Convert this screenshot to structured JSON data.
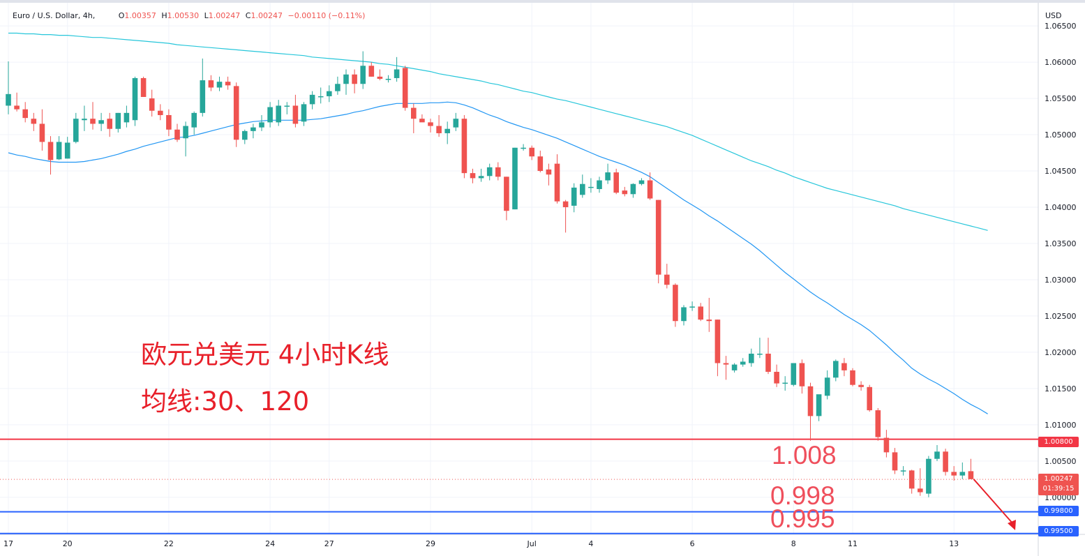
{
  "header": {
    "symbol": "Euro / U.S. Dollar, 4h,",
    "open_label": "O",
    "open": "1.00357",
    "high_label": "H",
    "high": "1.00530",
    "low_label": "L",
    "low": "1.00247",
    "close_label": "C",
    "close": "1.00247",
    "change": "−0.00110 (−0.11%)"
  },
  "axis": {
    "currency": "USD"
  },
  "annotations": {
    "title": "欧元兑美元 4小时K线",
    "ma_note": "均线:30、120",
    "level_1": "1.008",
    "level_2": "0.998",
    "level_3": "0.995"
  },
  "price_tags": {
    "resistance": "1.00800",
    "current_price": "1.00247",
    "countdown": "01:39:15",
    "support_1": "0.99800",
    "support_2": "0.99500"
  },
  "colors": {
    "up": "#26a69a",
    "down": "#ef5350",
    "ma30": "#2196f3",
    "ma120": "#26c6da",
    "resistance_line": "#f23645",
    "support_line": "#2962ff",
    "annotation_text": "#e8202a",
    "arrow": "#e8202a"
  },
  "chart_data": {
    "type": "candlestick",
    "timeframe": "4h",
    "symbol": "Euro / U.S. Dollar",
    "ylim": [
      0.9945,
      1.0678
    ],
    "y_ticks": [
      "1.06500",
      "1.06000",
      "1.05500",
      "1.05000",
      "1.04500",
      "1.04000",
      "1.03500",
      "1.03000",
      "1.02500",
      "1.02000",
      "1.01500",
      "1.01000",
      "1.00500",
      "1.00000"
    ],
    "x_ticks": [
      "17",
      "20",
      "22",
      "24",
      "27",
      "29",
      "Jul",
      "4",
      "6",
      "8",
      "11",
      "13"
    ],
    "x_tick_bar_index": [
      0,
      7,
      19,
      31,
      38,
      50,
      62,
      69,
      81,
      93,
      100,
      112
    ],
    "candles": [
      {
        "o": 1.054,
        "h": 1.0601,
        "l": 1.0528,
        "c": 1.0556
      },
      {
        "o": 1.054,
        "h": 1.0558,
        "l": 1.0532,
        "c": 1.0535
      },
      {
        "o": 1.0535,
        "h": 1.0545,
        "l": 1.0517,
        "c": 1.0523
      },
      {
        "o": 1.0522,
        "h": 1.053,
        "l": 1.0505,
        "c": 1.0515
      },
      {
        "o": 1.0515,
        "h": 1.0535,
        "l": 1.0478,
        "c": 1.049
      },
      {
        "o": 1.049,
        "h": 1.0498,
        "l": 1.0445,
        "c": 1.0465
      },
      {
        "o": 1.0466,
        "h": 1.0498,
        "l": 1.0465,
        "c": 1.049
      },
      {
        "o": 1.0467,
        "h": 1.0497,
        "l": 1.0467,
        "c": 1.0489
      },
      {
        "o": 1.049,
        "h": 1.053,
        "l": 1.0488,
        "c": 1.0522
      },
      {
        "o": 1.052,
        "h": 1.054,
        "l": 1.0505,
        "c": 1.0522
      },
      {
        "o": 1.0522,
        "h": 1.0545,
        "l": 1.0507,
        "c": 1.0515
      },
      {
        "o": 1.0515,
        "h": 1.053,
        "l": 1.0505,
        "c": 1.052
      },
      {
        "o": 1.0522,
        "h": 1.053,
        "l": 1.0497,
        "c": 1.0508
      },
      {
        "o": 1.0508,
        "h": 1.053,
        "l": 1.0503,
        "c": 1.053
      },
      {
        "o": 1.0517,
        "h": 1.054,
        "l": 1.051,
        "c": 1.053
      },
      {
        "o": 1.052,
        "h": 1.058,
        "l": 1.0512,
        "c": 1.0578
      },
      {
        "o": 1.0578,
        "h": 1.058,
        "l": 1.0552,
        "c": 1.0552
      },
      {
        "o": 1.055,
        "h": 1.0562,
        "l": 1.0525,
        "c": 1.0533
      },
      {
        "o": 1.0533,
        "h": 1.0542,
        "l": 1.052,
        "c": 1.0527
      },
      {
        "o": 1.0527,
        "h": 1.0535,
        "l": 1.0498,
        "c": 1.0507
      },
      {
        "o": 1.0507,
        "h": 1.0515,
        "l": 1.049,
        "c": 1.0493
      },
      {
        "o": 1.0495,
        "h": 1.0518,
        "l": 1.047,
        "c": 1.0512
      },
      {
        "o": 1.051,
        "h": 1.0532,
        "l": 1.05,
        "c": 1.053
      },
      {
        "o": 1.053,
        "h": 1.0605,
        "l": 1.0525,
        "c": 1.0575
      },
      {
        "o": 1.0575,
        "h": 1.0582,
        "l": 1.056,
        "c": 1.0565
      },
      {
        "o": 1.0565,
        "h": 1.058,
        "l": 1.056,
        "c": 1.0573
      },
      {
        "o": 1.0573,
        "h": 1.058,
        "l": 1.0562,
        "c": 1.0568
      },
      {
        "o": 1.0567,
        "h": 1.0572,
        "l": 1.0483,
        "c": 1.0493
      },
      {
        "o": 1.0493,
        "h": 1.0507,
        "l": 1.0487,
        "c": 1.0505
      },
      {
        "o": 1.0505,
        "h": 1.0515,
        "l": 1.0495,
        "c": 1.051
      },
      {
        "o": 1.051,
        "h": 1.0527,
        "l": 1.0505,
        "c": 1.0517
      },
      {
        "o": 1.0517,
        "h": 1.0545,
        "l": 1.051,
        "c": 1.0538
      },
      {
        "o": 1.0517,
        "h": 1.0548,
        "l": 1.0512,
        "c": 1.054
      },
      {
        "o": 1.054,
        "h": 1.0545,
        "l": 1.0528,
        "c": 1.054
      },
      {
        "o": 1.054,
        "h": 1.0555,
        "l": 1.051,
        "c": 1.0515
      },
      {
        "o": 1.0518,
        "h": 1.0545,
        "l": 1.0512,
        "c": 1.0542
      },
      {
        "o": 1.0542,
        "h": 1.056,
        "l": 1.0535,
        "c": 1.0555
      },
      {
        "o": 1.0553,
        "h": 1.0565,
        "l": 1.0543,
        "c": 1.0553
      },
      {
        "o": 1.0553,
        "h": 1.0568,
        "l": 1.0545,
        "c": 1.056
      },
      {
        "o": 1.056,
        "h": 1.058,
        "l": 1.0555,
        "c": 1.057
      },
      {
        "o": 1.057,
        "h": 1.059,
        "l": 1.0555,
        "c": 1.0583
      },
      {
        "o": 1.0583,
        "h": 1.059,
        "l": 1.0557,
        "c": 1.057
      },
      {
        "o": 1.057,
        "h": 1.0615,
        "l": 1.0563,
        "c": 1.0595
      },
      {
        "o": 1.0595,
        "h": 1.06,
        "l": 1.058,
        "c": 1.058
      },
      {
        "o": 1.058,
        "h": 1.059,
        "l": 1.0575,
        "c": 1.0577
      },
      {
        "o": 1.0577,
        "h": 1.0582,
        "l": 1.0572,
        "c": 1.0577
      },
      {
        "o": 1.0578,
        "h": 1.0607,
        "l": 1.0573,
        "c": 1.059
      },
      {
        "o": 1.0592,
        "h": 1.0595,
        "l": 1.0533,
        "c": 1.0537
      },
      {
        "o": 1.0537,
        "h": 1.0543,
        "l": 1.0502,
        "c": 1.0522
      },
      {
        "o": 1.0522,
        "h": 1.0528,
        "l": 1.0518,
        "c": 1.0517
      },
      {
        "o": 1.0517,
        "h": 1.0522,
        "l": 1.0503,
        "c": 1.0512
      },
      {
        "o": 1.0512,
        "h": 1.0527,
        "l": 1.0497,
        "c": 1.0502
      },
      {
        "o": 1.0502,
        "h": 1.0518,
        "l": 1.0487,
        "c": 1.0508
      },
      {
        "o": 1.051,
        "h": 1.053,
        "l": 1.0505,
        "c": 1.0522
      },
      {
        "o": 1.0522,
        "h": 1.0527,
        "l": 1.044,
        "c": 1.0447
      },
      {
        "o": 1.0447,
        "h": 1.0453,
        "l": 1.0433,
        "c": 1.044
      },
      {
        "o": 1.044,
        "h": 1.0453,
        "l": 1.0435,
        "c": 1.0443
      },
      {
        "o": 1.0443,
        "h": 1.046,
        "l": 1.0437,
        "c": 1.0455
      },
      {
        "o": 1.0455,
        "h": 1.0462,
        "l": 1.0437,
        "c": 1.0442
      },
      {
        "o": 1.0442,
        "h": 1.0442,
        "l": 1.0382,
        "c": 1.0395
      },
      {
        "o": 1.0397,
        "h": 1.0482,
        "l": 1.0397,
        "c": 1.0482
      },
      {
        "o": 1.0482,
        "h": 1.0487,
        "l": 1.0478,
        "c": 1.0482
      },
      {
        "o": 1.0482,
        "h": 1.0485,
        "l": 1.0465,
        "c": 1.047
      },
      {
        "o": 1.047,
        "h": 1.0478,
        "l": 1.0448,
        "c": 1.045
      },
      {
        "o": 1.0452,
        "h": 1.046,
        "l": 1.043,
        "c": 1.0445
      },
      {
        "o": 1.046,
        "h": 1.0473,
        "l": 1.0405,
        "c": 1.0408
      },
      {
        "o": 1.0408,
        "h": 1.041,
        "l": 1.0365,
        "c": 1.04
      },
      {
        "o": 1.0402,
        "h": 1.0433,
        "l": 1.0393,
        "c": 1.0427
      },
      {
        "o": 1.0417,
        "h": 1.0445,
        "l": 1.0413,
        "c": 1.0432
      },
      {
        "o": 1.0427,
        "h": 1.044,
        "l": 1.042,
        "c": 1.0428
      },
      {
        "o": 1.0425,
        "h": 1.0442,
        "l": 1.042,
        "c": 1.0437
      },
      {
        "o": 1.0437,
        "h": 1.046,
        "l": 1.0432,
        "c": 1.0448
      },
      {
        "o": 1.0448,
        "h": 1.0453,
        "l": 1.0418,
        "c": 1.042
      },
      {
        "o": 1.0423,
        "h": 1.0428,
        "l": 1.0415,
        "c": 1.0418
      },
      {
        "o": 1.0418,
        "h": 1.0433,
        "l": 1.0413,
        "c": 1.0432
      },
      {
        "o": 1.0432,
        "h": 1.044,
        "l": 1.043,
        "c": 1.0437
      },
      {
        "o": 1.0437,
        "h": 1.0448,
        "l": 1.041,
        "c": 1.0412
      },
      {
        "o": 1.041,
        "h": 1.041,
        "l": 1.0295,
        "c": 1.0307
      },
      {
        "o": 1.0307,
        "h": 1.0322,
        "l": 1.0288,
        "c": 1.0293
      },
      {
        "o": 1.0293,
        "h": 1.0295,
        "l": 1.0235,
        "c": 1.0243
      },
      {
        "o": 1.0243,
        "h": 1.0265,
        "l": 1.0237,
        "c": 1.0262
      },
      {
        "o": 1.0262,
        "h": 1.027,
        "l": 1.0257,
        "c": 1.0263
      },
      {
        "o": 1.0263,
        "h": 1.0268,
        "l": 1.0243,
        "c": 1.0245
      },
      {
        "o": 1.0245,
        "h": 1.0275,
        "l": 1.0228,
        "c": 1.0243
      },
      {
        "o": 1.0245,
        "h": 1.0245,
        "l": 1.0167,
        "c": 1.0185
      },
      {
        "o": 1.0185,
        "h": 1.0195,
        "l": 1.0162,
        "c": 1.0183
      },
      {
        "o": 1.0175,
        "h": 1.0185,
        "l": 1.0172,
        "c": 1.0183
      },
      {
        "o": 1.0183,
        "h": 1.0192,
        "l": 1.018,
        "c": 1.0187
      },
      {
        "o": 1.0185,
        "h": 1.0205,
        "l": 1.018,
        "c": 1.0198
      },
      {
        "o": 1.0198,
        "h": 1.022,
        "l": 1.0192,
        "c": 1.0198
      },
      {
        "o": 1.0198,
        "h": 1.022,
        "l": 1.017,
        "c": 1.0173
      },
      {
        "o": 1.0173,
        "h": 1.0183,
        "l": 1.0152,
        "c": 1.0157
      },
      {
        "o": 1.0157,
        "h": 1.0167,
        "l": 1.0147,
        "c": 1.0158
      },
      {
        "o": 1.0155,
        "h": 1.0183,
        "l": 1.0153,
        "c": 1.0185
      },
      {
        "o": 1.0185,
        "h": 1.019,
        "l": 1.0143,
        "c": 1.0153
      },
      {
        "o": 1.0153,
        "h": 1.0158,
        "l": 1.0078,
        "c": 1.0112
      },
      {
        "o": 1.0112,
        "h": 1.014,
        "l": 1.0105,
        "c": 1.0142
      },
      {
        "o": 1.014,
        "h": 1.0175,
        "l": 1.0135,
        "c": 1.0165
      },
      {
        "o": 1.0165,
        "h": 1.019,
        "l": 1.016,
        "c": 1.0188
      },
      {
        "o": 1.0185,
        "h": 1.0192,
        "l": 1.0167,
        "c": 1.0175
      },
      {
        "o": 1.0175,
        "h": 1.0178,
        "l": 1.0153,
        "c": 1.0155
      },
      {
        "o": 1.0155,
        "h": 1.016,
        "l": 1.0147,
        "c": 1.0152
      },
      {
        "o": 1.0152,
        "h": 1.0155,
        "l": 1.0118,
        "c": 1.012
      },
      {
        "o": 1.012,
        "h": 1.0123,
        "l": 1.0078,
        "c": 1.0083
      },
      {
        "o": 1.0082,
        "h": 1.0093,
        "l": 1.0055,
        "c": 1.0062
      },
      {
        "o": 1.0062,
        "h": 1.0068,
        "l": 1.0032,
        "c": 1.0037
      },
      {
        "o": 1.0037,
        "h": 1.0043,
        "l": 1.003,
        "c": 1.0037
      },
      {
        "o": 1.0037,
        "h": 1.0038,
        "l": 1.0005,
        "c": 1.0012
      },
      {
        "o": 1.0012,
        "h": 1.004,
        "l": 1.0002,
        "c": 1.0007
      },
      {
        "o": 1.0005,
        "h": 1.0057,
        "l": 1.0,
        "c": 1.0053
      },
      {
        "o": 1.0053,
        "h": 1.0072,
        "l": 1.005,
        "c": 1.0063
      },
      {
        "o": 1.0063,
        "h": 1.0067,
        "l": 1.003,
        "c": 1.0035
      },
      {
        "o": 1.0035,
        "h": 1.0043,
        "l": 1.0023,
        "c": 1.003
      },
      {
        "o": 1.003,
        "h": 1.0048,
        "l": 1.0025,
        "c": 1.0035
      },
      {
        "o": 1.0036,
        "h": 1.0053,
        "l": 1.0025,
        "c": 1.0025
      }
    ],
    "ma30": [
      1.0475,
      1.0472,
      1.047,
      1.0467,
      1.0465,
      1.0463,
      1.0462,
      1.0462,
      1.0462,
      1.0463,
      1.0465,
      1.0467,
      1.047,
      1.0473,
      1.0477,
      1.048,
      1.0484,
      1.0487,
      1.049,
      1.0493,
      1.0496,
      1.0497,
      1.0499,
      1.0502,
      1.0505,
      1.0508,
      1.0511,
      1.0514,
      1.0516,
      1.0518,
      1.0519,
      1.052,
      1.052,
      1.052,
      1.052,
      1.052,
      1.0521,
      1.0522,
      1.0524,
      1.0526,
      1.0528,
      1.0531,
      1.0533,
      1.0536,
      1.0539,
      1.0541,
      1.0543,
      1.0543,
      1.0543,
      1.0543,
      1.0544,
      1.0544,
      1.0545,
      1.0544,
      1.0541,
      1.0537,
      1.0532,
      1.0527,
      1.0523,
      1.0518,
      1.0514,
      1.051,
      1.0507,
      1.0503,
      1.0499,
      1.0495,
      1.049,
      1.0485,
      1.048,
      1.0475,
      1.047,
      1.0466,
      1.0462,
      1.0458,
      1.0453,
      1.0448,
      1.0442,
      1.0434,
      1.0426,
      1.0418,
      1.041,
      1.0403,
      1.0396,
      1.0388,
      1.0381,
      1.0373,
      1.0365,
      1.0357,
      1.0349,
      1.034,
      1.033,
      1.032,
      1.031,
      1.0301,
      1.0292,
      1.0283,
      1.0275,
      1.0268,
      1.026,
      1.0252,
      1.0245,
      1.0238,
      1.023,
      1.022,
      1.021,
      1.0199,
      1.0189,
      1.0178,
      1.017,
      1.0163,
      1.0157,
      1.015,
      1.0143,
      1.0135,
      1.0128,
      1.0122,
      1.0115
    ],
    "ma120": [
      1.064,
      1.064,
      1.0639,
      1.0639,
      1.0638,
      1.0638,
      1.0637,
      1.0637,
      1.0636,
      1.0635,
      1.0634,
      1.0634,
      1.0633,
      1.0632,
      1.0631,
      1.063,
      1.0629,
      1.0628,
      1.0627,
      1.0626,
      1.0624,
      1.0623,
      1.0622,
      1.0621,
      1.062,
      1.0619,
      1.0618,
      1.0617,
      1.0616,
      1.0615,
      1.0614,
      1.0613,
      1.0612,
      1.0611,
      1.061,
      1.0609,
      1.0607,
      1.0606,
      1.0605,
      1.0604,
      1.0603,
      1.0602,
      1.0601,
      1.06,
      1.0598,
      1.0597,
      1.0595,
      1.0593,
      1.0591,
      1.0589,
      1.0587,
      1.0584,
      1.0582,
      1.058,
      1.0578,
      1.0576,
      1.0574,
      1.0571,
      1.0569,
      1.0566,
      1.0563,
      1.056,
      1.0558,
      1.0555,
      1.0552,
      1.0549,
      1.0547,
      1.0544,
      1.0541,
      1.0538,
      1.0535,
      1.0532,
      1.0529,
      1.0526,
      1.0523,
      1.052,
      1.0517,
      1.0514,
      1.0511,
      1.0507,
      1.0503,
      1.0499,
      1.0494,
      1.0489,
      1.0484,
      1.0479,
      1.0474,
      1.0469,
      1.0464,
      1.046,
      1.0456,
      1.0451,
      1.0447,
      1.0442,
      1.0438,
      1.0434,
      1.043,
      1.0426,
      1.0423,
      1.042,
      1.0417,
      1.0414,
      1.0411,
      1.0408,
      1.0405,
      1.0402,
      1.0398,
      1.0395,
      1.0392,
      1.0389,
      1.0386,
      1.0383,
      1.038,
      1.0377,
      1.0374,
      1.0371,
      1.0368
    ],
    "horizontal_levels": [
      {
        "value": 1.008,
        "color": "red"
      },
      {
        "value": 0.998,
        "color": "blue"
      },
      {
        "value": 0.995,
        "color": "blue"
      }
    ],
    "current_price": 1.00247
  }
}
